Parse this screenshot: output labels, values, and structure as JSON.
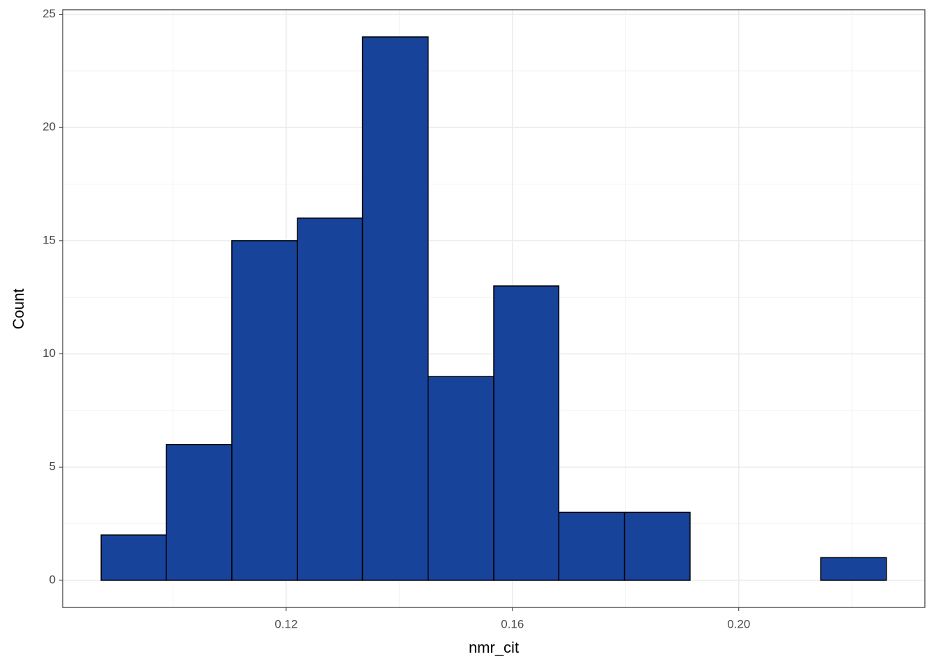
{
  "chart_data": {
    "type": "histogram",
    "x_label": "nmr_cit",
    "y_label": "Count",
    "bins": [
      0.0873,
      0.0988,
      0.1104,
      0.122,
      0.1335,
      0.1451,
      0.1567,
      0.1682,
      0.1798,
      0.1914,
      0.2029,
      0.2145,
      0.2261
    ],
    "counts": [
      2,
      6,
      15,
      16,
      24,
      9,
      13,
      3,
      3,
      0,
      0,
      1
    ],
    "color": "#17439b",
    "edge_color": "#000000",
    "xlim": [
      0.0805,
      0.2329
    ],
    "ylim": [
      -1.2,
      25.2
    ],
    "xticks": [
      0.12,
      0.16,
      {
        "value": 0.2,
        "label": "0.20"
      }
    ],
    "yticks": [
      0,
      5,
      10,
      15,
      20,
      25
    ],
    "xminor": [
      0.1,
      0.14,
      0.18,
      0.22
    ],
    "yminor": [
      2.5,
      7.5,
      12.5,
      17.5,
      22.5
    ],
    "grid": true
  }
}
